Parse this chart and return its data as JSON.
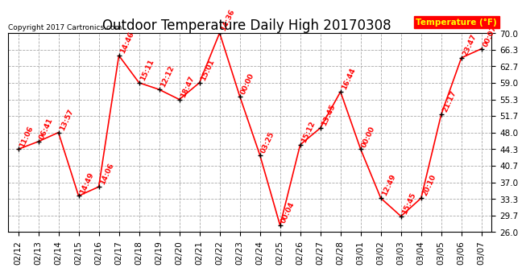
{
  "title": "Outdoor Temperature Daily High 20170308",
  "copyright": "Copyright 2017 Cartronics.com",
  "legend_label": "Temperature (°F)",
  "dates": [
    "02/12",
    "02/13",
    "02/14",
    "02/15",
    "02/16",
    "02/17",
    "02/18",
    "02/19",
    "02/20",
    "02/21",
    "02/22",
    "02/23",
    "02/24",
    "02/25",
    "02/26",
    "02/27",
    "02/28",
    "03/01",
    "03/02",
    "03/03",
    "03/04",
    "03/05",
    "03/06",
    "03/07"
  ],
  "temps": [
    44.3,
    46.0,
    48.0,
    34.0,
    36.0,
    65.0,
    59.0,
    57.5,
    55.3,
    59.0,
    70.0,
    56.0,
    43.0,
    27.5,
    45.3,
    49.0,
    57.0,
    44.3,
    33.5,
    29.5,
    33.5,
    52.0,
    64.5,
    66.5
  ],
  "time_labels": [
    "11:06",
    "06:41",
    "13:57",
    "14:49",
    "14:06",
    "14:46",
    "15:11",
    "12:12",
    "18:47",
    "15:01",
    "14:36",
    "00:00",
    "03:25",
    "00:04",
    "15:12",
    "13:45",
    "16:44",
    "00:00",
    "12:49",
    "15:45",
    "20:10",
    "21:17",
    "23:47",
    "00:07"
  ],
  "ylim": [
    26.0,
    70.0
  ],
  "yticks": [
    26.0,
    29.7,
    33.3,
    37.0,
    40.7,
    44.3,
    48.0,
    51.7,
    55.3,
    59.0,
    62.7,
    66.3,
    70.0
  ],
  "line_color": "red",
  "marker_color": "black",
  "bg_color": "white",
  "grid_color": "#aaaaaa",
  "title_fontsize": 12,
  "label_fontsize": 6.5,
  "tick_fontsize": 7.5,
  "legend_bg": "red",
  "legend_fg": "yellow"
}
